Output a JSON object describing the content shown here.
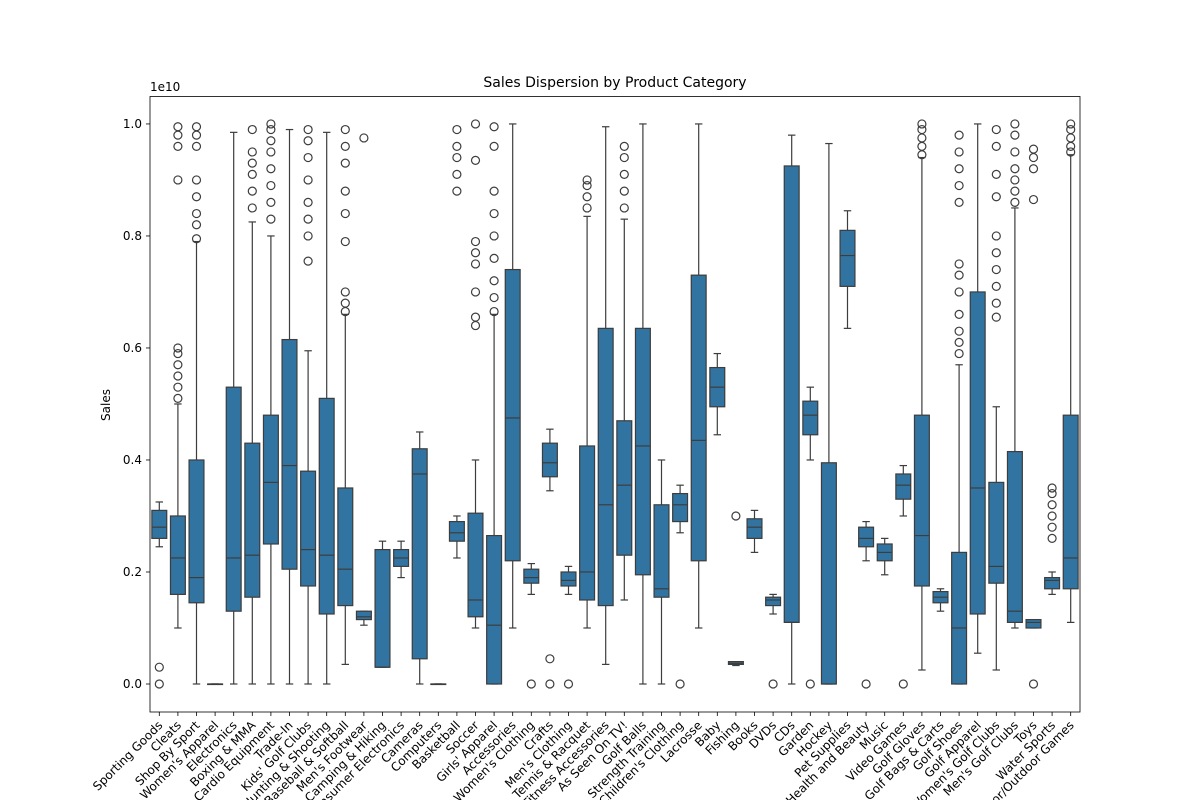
{
  "chart_data": {
    "type": "box",
    "title": "Sales Dispersion by Product Category",
    "y_label": "Sales",
    "y_offset_label": "1e10",
    "color": "#3274a1",
    "line_color": "#3d3d3d",
    "ylim": [
      -0.05,
      1.049
    ],
    "yticks": [
      {
        "value": 0,
        "label": "0.0"
      },
      {
        "value": 0.2,
        "label": "0.2"
      },
      {
        "value": 0.4,
        "label": "0.4"
      },
      {
        "value": 0.6,
        "label": "0.6"
      },
      {
        "value": 0.8,
        "label": "0.8"
      },
      {
        "value": 1,
        "label": "1.0"
      }
    ],
    "categories": [
      "Sporting Goods",
      "Cleats",
      "Shop By Sport",
      "Women's Apparel",
      "Electronics",
      "Boxing & MMA",
      "Cardio Equipment",
      "Trade-In",
      "Kids' Golf Clubs",
      "Hunting & Shooting",
      "Baseball & Softball",
      "Men's Footwear",
      "Camping & Hiking",
      "Consumer Electronics",
      "Cameras",
      "Computers",
      "Basketball",
      "Soccer",
      "Girls' Apparel",
      "Accessories",
      "Women's Clothing",
      "Crafts",
      "Men's Clothing",
      "Tennis & Racquet",
      "Fitness Accessories",
      "As Seen On TV!",
      "Golf Balls",
      "Strength Training",
      "Children's Clothing",
      "Lacrosse",
      "Baby",
      "Fishing",
      "Books",
      "DVDs",
      "CDs",
      "Garden",
      "Hockey",
      "Pet Supplies",
      "Health and Beauty",
      "Music",
      "Video Games",
      "Golf Gloves",
      "Golf Bags & Carts",
      "Golf Shoes",
      "Golf Apparel",
      "Women's Golf Clubs",
      "Men's Golf Clubs",
      "Toys",
      "Water Sports",
      "Indoor/Outdoor Games"
    ],
    "boxes": [
      {
        "whislo": 0.245,
        "q1": 0.26,
        "med": 0.28,
        "q3": 0.31,
        "whishi": 0.325,
        "fliers": [
          0.0,
          0.03
        ]
      },
      {
        "whislo": 0.1,
        "q1": 0.16,
        "med": 0.225,
        "q3": 0.3,
        "whishi": 0.5,
        "fliers": [
          0.51,
          0.53,
          0.55,
          0.57,
          0.59,
          0.6,
          0.9,
          0.96,
          0.98,
          0.995
        ]
      },
      {
        "whislo": 0.0,
        "q1": 0.145,
        "med": 0.19,
        "q3": 0.4,
        "whishi": 0.79,
        "fliers": [
          0.795,
          0.82,
          0.84,
          0.87,
          0.9,
          0.96,
          0.98,
          0.995
        ]
      },
      {
        "whislo": 0.0,
        "q1": 0.0,
        "med": 0.0,
        "q3": 0.0,
        "whishi": 0.0,
        "fliers": []
      },
      {
        "whislo": 0.0,
        "q1": 0.13,
        "med": 0.225,
        "q3": 0.53,
        "whishi": 0.985,
        "fliers": []
      },
      {
        "whislo": 0.0,
        "q1": 0.155,
        "med": 0.23,
        "q3": 0.43,
        "whishi": 0.825,
        "fliers": [
          0.85,
          0.88,
          0.91,
          0.93,
          0.95,
          0.99
        ]
      },
      {
        "whislo": 0.0,
        "q1": 0.25,
        "med": 0.36,
        "q3": 0.48,
        "whishi": 0.8,
        "fliers": [
          0.83,
          0.86,
          0.89,
          0.92,
          0.95,
          0.97,
          0.99,
          1.0
        ]
      },
      {
        "whislo": 0.0,
        "q1": 0.205,
        "med": 0.39,
        "q3": 0.615,
        "whishi": 0.99,
        "fliers": []
      },
      {
        "whislo": 0.0,
        "q1": 0.175,
        "med": 0.24,
        "q3": 0.38,
        "whishi": 0.595,
        "fliers": [
          0.755,
          0.8,
          0.83,
          0.86,
          0.9,
          0.94,
          0.97,
          0.99
        ]
      },
      {
        "whislo": 0.0,
        "q1": 0.125,
        "med": 0.23,
        "q3": 0.51,
        "whishi": 0.985,
        "fliers": []
      },
      {
        "whislo": 0.035,
        "q1": 0.14,
        "med": 0.205,
        "q3": 0.35,
        "whishi": 0.66,
        "fliers": [
          0.665,
          0.68,
          0.7,
          0.79,
          0.84,
          0.88,
          0.93,
          0.96,
          0.99
        ]
      },
      {
        "whislo": 0.105,
        "q1": 0.115,
        "med": 0.12,
        "q3": 0.13,
        "whishi": 0.13,
        "fliers": [
          0.975
        ]
      },
      {
        "whislo": 0.03,
        "q1": 0.03,
        "med": 0.03,
        "q3": 0.24,
        "whishi": 0.255,
        "fliers": []
      },
      {
        "whislo": 0.19,
        "q1": 0.21,
        "med": 0.225,
        "q3": 0.24,
        "whishi": 0.255,
        "fliers": []
      },
      {
        "whislo": 0.0,
        "q1": 0.045,
        "med": 0.375,
        "q3": 0.42,
        "whishi": 0.45,
        "fliers": []
      },
      {
        "whislo": 0.0,
        "q1": 0.0,
        "med": 0.0,
        "q3": 0.0,
        "whishi": 0.0,
        "fliers": []
      },
      {
        "whislo": 0.225,
        "q1": 0.255,
        "med": 0.27,
        "q3": 0.29,
        "whishi": 0.3,
        "fliers": [
          0.88,
          0.91,
          0.94,
          0.96,
          0.99
        ]
      },
      {
        "whislo": 0.1,
        "q1": 0.12,
        "med": 0.15,
        "q3": 0.305,
        "whishi": 0.4,
        "fliers": [
          0.64,
          0.655,
          0.7,
          0.75,
          0.77,
          0.79,
          0.935,
          1.0
        ]
      },
      {
        "whislo": 0.0,
        "q1": 0.0,
        "med": 0.105,
        "q3": 0.265,
        "whishi": 0.66,
        "fliers": [
          0.665,
          0.69,
          0.72,
          0.76,
          0.8,
          0.84,
          0.88,
          0.96,
          0.995
        ]
      },
      {
        "whislo": 0.1,
        "q1": 0.22,
        "med": 0.475,
        "q3": 0.74,
        "whishi": 1.0,
        "fliers": []
      },
      {
        "whislo": 0.16,
        "q1": 0.18,
        "med": 0.19,
        "q3": 0.205,
        "whishi": 0.215,
        "fliers": [
          0.0
        ]
      },
      {
        "whislo": 0.345,
        "q1": 0.37,
        "med": 0.395,
        "q3": 0.43,
        "whishi": 0.455,
        "fliers": [
          0.0,
          0.045
        ]
      },
      {
        "whislo": 0.16,
        "q1": 0.175,
        "med": 0.185,
        "q3": 0.2,
        "whishi": 0.21,
        "fliers": [
          0.0
        ]
      },
      {
        "whislo": 0.1,
        "q1": 0.15,
        "med": 0.2,
        "q3": 0.425,
        "whishi": 0.835,
        "fliers": [
          0.85,
          0.87,
          0.89,
          0.9
        ]
      },
      {
        "whislo": 0.035,
        "q1": 0.14,
        "med": 0.32,
        "q3": 0.635,
        "whishi": 0.995,
        "fliers": []
      },
      {
        "whislo": 0.15,
        "q1": 0.23,
        "med": 0.355,
        "q3": 0.47,
        "whishi": 0.83,
        "fliers": [
          0.85,
          0.88,
          0.91,
          0.94,
          0.96
        ]
      },
      {
        "whislo": 0.0,
        "q1": 0.195,
        "med": 0.425,
        "q3": 0.635,
        "whishi": 1.0,
        "fliers": []
      },
      {
        "whislo": 0.0,
        "q1": 0.155,
        "med": 0.17,
        "q3": 0.32,
        "whishi": 0.4,
        "fliers": []
      },
      {
        "whislo": 0.27,
        "q1": 0.29,
        "med": 0.32,
        "q3": 0.34,
        "whishi": 0.355,
        "fliers": [
          0.0
        ]
      },
      {
        "whislo": 0.1,
        "q1": 0.22,
        "med": 0.435,
        "q3": 0.73,
        "whishi": 1.0,
        "fliers": []
      },
      {
        "whislo": 0.445,
        "q1": 0.495,
        "med": 0.53,
        "q3": 0.565,
        "whishi": 0.59,
        "fliers": []
      },
      {
        "whislo": 0.033,
        "q1": 0.035,
        "med": 0.037,
        "q3": 0.04,
        "whishi": 0.04,
        "fliers": [
          0.3
        ]
      },
      {
        "whislo": 0.235,
        "q1": 0.26,
        "med": 0.28,
        "q3": 0.295,
        "whishi": 0.31,
        "fliers": []
      },
      {
        "whislo": 0.125,
        "q1": 0.14,
        "med": 0.15,
        "q3": 0.155,
        "whishi": 0.16,
        "fliers": [
          0.0
        ]
      },
      {
        "whislo": 0.0,
        "q1": 0.11,
        "med": 0.11,
        "q3": 0.925,
        "whishi": 0.98,
        "fliers": []
      },
      {
        "whislo": 0.4,
        "q1": 0.445,
        "med": 0.48,
        "q3": 0.505,
        "whishi": 0.53,
        "fliers": [
          0.0
        ]
      },
      {
        "whislo": 0.0,
        "q1": 0.0,
        "med": 0.0,
        "q3": 0.395,
        "whishi": 0.965,
        "fliers": []
      },
      {
        "whislo": 0.635,
        "q1": 0.71,
        "med": 0.765,
        "q3": 0.81,
        "whishi": 0.845,
        "fliers": []
      },
      {
        "whislo": 0.22,
        "q1": 0.245,
        "med": 0.26,
        "q3": 0.28,
        "whishi": 0.29,
        "fliers": [
          0.0
        ]
      },
      {
        "whislo": 0.195,
        "q1": 0.22,
        "med": 0.235,
        "q3": 0.25,
        "whishi": 0.26,
        "fliers": []
      },
      {
        "whislo": 0.3,
        "q1": 0.33,
        "med": 0.355,
        "q3": 0.375,
        "whishi": 0.39,
        "fliers": [
          0.0
        ]
      },
      {
        "whislo": 0.025,
        "q1": 0.175,
        "med": 0.265,
        "q3": 0.48,
        "whishi": 0.94,
        "fliers": [
          0.945,
          0.96,
          0.975,
          0.99,
          1.0
        ]
      },
      {
        "whislo": 0.13,
        "q1": 0.145,
        "med": 0.155,
        "q3": 0.165,
        "whishi": 0.17,
        "fliers": []
      },
      {
        "whislo": 0.0,
        "q1": 0.0,
        "med": 0.1,
        "q3": 0.235,
        "whishi": 0.57,
        "fliers": [
          0.59,
          0.61,
          0.63,
          0.66,
          0.7,
          0.73,
          0.75,
          0.86,
          0.89,
          0.92,
          0.95,
          0.98
        ]
      },
      {
        "whislo": 0.055,
        "q1": 0.125,
        "med": 0.35,
        "q3": 0.7,
        "whishi": 1.0,
        "fliers": []
      },
      {
        "whislo": 0.025,
        "q1": 0.18,
        "med": 0.21,
        "q3": 0.36,
        "whishi": 0.495,
        "fliers": [
          0.655,
          0.68,
          0.71,
          0.74,
          0.77,
          0.8,
          0.87,
          0.91,
          0.96,
          0.99
        ]
      },
      {
        "whislo": 0.1,
        "q1": 0.11,
        "med": 0.13,
        "q3": 0.415,
        "whishi": 0.85,
        "fliers": [
          0.86,
          0.88,
          0.9,
          0.92,
          0.95,
          0.98,
          1.0
        ]
      },
      {
        "whislo": 0.1,
        "q1": 0.1,
        "med": 0.11,
        "q3": 0.115,
        "whishi": 0.115,
        "fliers": [
          0.0,
          0.865,
          0.92,
          0.94,
          0.955
        ]
      },
      {
        "whislo": 0.16,
        "q1": 0.17,
        "med": 0.185,
        "q3": 0.19,
        "whishi": 0.2,
        "fliers": [
          0.26,
          0.28,
          0.3,
          0.32,
          0.34,
          0.35
        ]
      },
      {
        "whislo": 0.11,
        "q1": 0.17,
        "med": 0.225,
        "q3": 0.48,
        "whishi": 0.945,
        "fliers": [
          0.95,
          0.96,
          0.975,
          0.99,
          1.0
        ]
      }
    ]
  }
}
